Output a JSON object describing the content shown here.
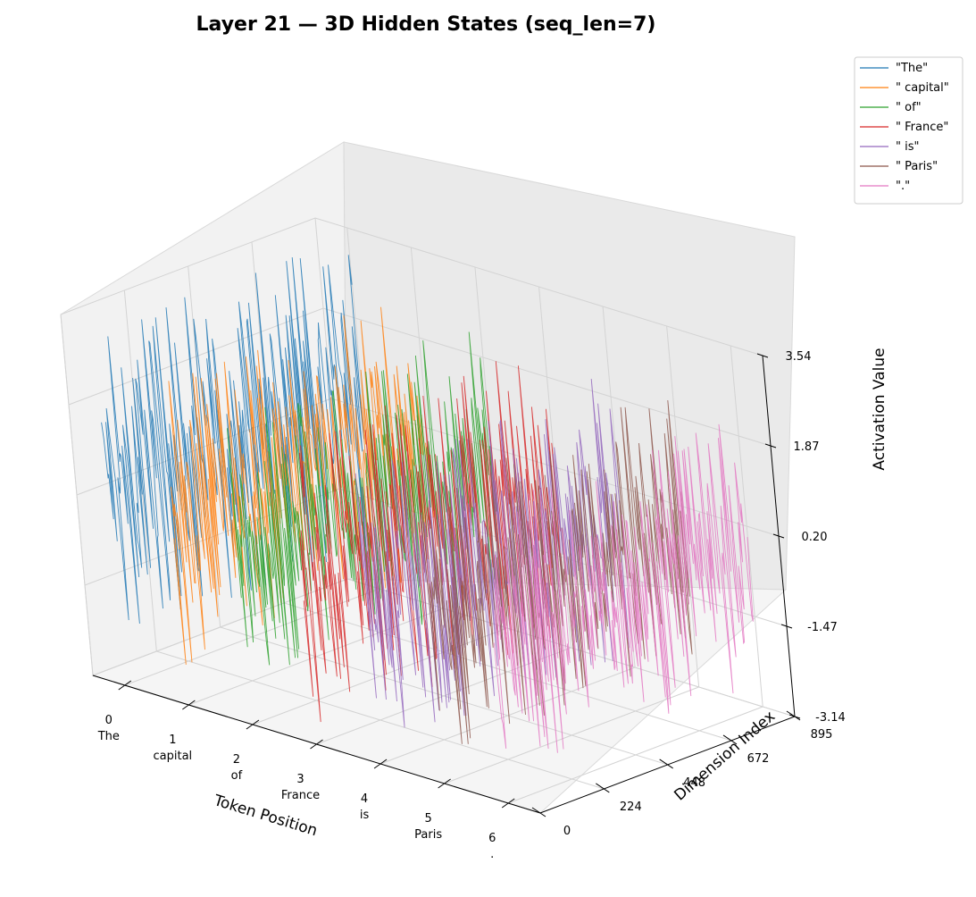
{
  "chart_data": {
    "type": "line",
    "projection": "3d",
    "title": "Layer 21 — 3D Hidden States (seq_len=7)",
    "xlabel": "Token Position",
    "ylabel": "Dimension Index",
    "zlabel": "Activation Value",
    "x_ticks": [
      {
        "value": 0,
        "label": "0",
        "token": "The"
      },
      {
        "value": 1,
        "label": "1",
        "token": "capital"
      },
      {
        "value": 2,
        "label": "2",
        "token": "of"
      },
      {
        "value": 3,
        "label": "3",
        "token": "France"
      },
      {
        "value": 4,
        "label": "4",
        "token": "is"
      },
      {
        "value": 5,
        "label": "5",
        "token": "Paris"
      },
      {
        "value": 6,
        "label": "6",
        "token": "."
      }
    ],
    "y_ticks": [
      "0",
      "224",
      "448",
      "672",
      "895"
    ],
    "z_ticks": [
      "-3.14",
      "-1.47",
      "0.20",
      "1.87",
      "3.54"
    ],
    "xlim": [
      -0.5,
      6.5
    ],
    "ylim": [
      0,
      895
    ],
    "zlim": [
      -3.14,
      3.54
    ],
    "grid": true,
    "legend_position": "upper-right-outside",
    "series": [
      {
        "name": "\"The\"",
        "token_position": 0,
        "color": "#1f77b4",
        "activation_range": [
          -2.3,
          3.4
        ]
      },
      {
        "name": "\" capital\"",
        "token_position": 1,
        "color": "#ff7f0e",
        "activation_range": [
          -2.4,
          2.8
        ]
      },
      {
        "name": "\" of\"",
        "token_position": 2,
        "color": "#2ca02c",
        "activation_range": [
          -2.5,
          2.6
        ]
      },
      {
        "name": "\" France\"",
        "token_position": 3,
        "color": "#d62728",
        "activation_range": [
          -2.9,
          2.5
        ]
      },
      {
        "name": "\" is\"",
        "token_position": 4,
        "color": "#9467bd",
        "activation_range": [
          -2.9,
          2.4
        ]
      },
      {
        "name": "\" Paris\"",
        "token_position": 5,
        "color": "#8c564b",
        "activation_range": [
          -2.6,
          2.4
        ]
      },
      {
        "name": "\".\"",
        "token_position": 6,
        "color": "#e377c2",
        "activation_range": [
          -2.7,
          2.3
        ]
      }
    ]
  }
}
